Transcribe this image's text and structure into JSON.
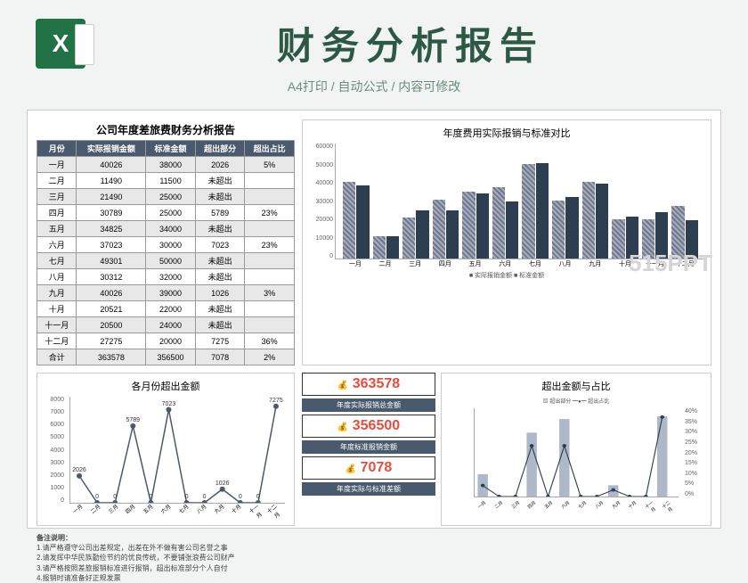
{
  "header": {
    "title": "财务分析报告",
    "subtitle": "A4打印 / 自动公式 / 内容可修改",
    "icon": "X"
  },
  "watermark": "515PPT",
  "table": {
    "title": "公司年度差旅费财务分析报告",
    "columns": [
      "月份",
      "实际报销金额",
      "标准金额",
      "超出部分",
      "超出占比"
    ],
    "rows": [
      [
        "一月",
        "40026",
        "38000",
        "2026",
        "5%"
      ],
      [
        "二月",
        "11490",
        "11500",
        "未超出",
        ""
      ],
      [
        "三月",
        "21490",
        "25000",
        "未超出",
        ""
      ],
      [
        "四月",
        "30789",
        "25000",
        "5789",
        "23%"
      ],
      [
        "五月",
        "34825",
        "34000",
        "未超出",
        ""
      ],
      [
        "六月",
        "37023",
        "30000",
        "7023",
        "23%"
      ],
      [
        "七月",
        "49301",
        "50000",
        "未超出",
        ""
      ],
      [
        "八月",
        "30312",
        "32000",
        "未超出",
        ""
      ],
      [
        "九月",
        "40026",
        "39000",
        "1026",
        "3%"
      ],
      [
        "十月",
        "20521",
        "22000",
        "未超出",
        ""
      ],
      [
        "十一月",
        "20500",
        "24000",
        "未超出",
        ""
      ],
      [
        "十二月",
        "27275",
        "20000",
        "7275",
        "36%"
      ],
      [
        "合计",
        "363578",
        "356500",
        "7078",
        "2%"
      ]
    ]
  },
  "bar_chart": {
    "title": "年度费用实际报销与标准对比",
    "months": [
      "一月",
      "二月",
      "三月",
      "四月",
      "五月",
      "六月",
      "七月",
      "八月",
      "九月",
      "十月",
      "十一月",
      "十二月"
    ],
    "actual": [
      40026,
      11490,
      21490,
      30789,
      34825,
      37023,
      49301,
      30312,
      40026,
      20521,
      20500,
      27275
    ],
    "standard": [
      38000,
      11500,
      25000,
      25000,
      34000,
      30000,
      50000,
      32000,
      39000,
      22000,
      24000,
      20000
    ],
    "ymax": 60000,
    "yticks": [
      "60000",
      "50000",
      "40000",
      "30000",
      "20000",
      "10000",
      "0"
    ],
    "legend": "■ 实际报销金额  ■ 标准金额"
  },
  "line_chart": {
    "title": "各月份超出金额",
    "months": [
      "一月",
      "二月",
      "三月",
      "四月",
      "五月",
      "六月",
      "七月",
      "八月",
      "九月",
      "十月",
      "十一月",
      "十二月"
    ],
    "values": [
      2026,
      0,
      0,
      5789,
      0,
      7023,
      0,
      0,
      1026,
      0,
      0,
      7275
    ],
    "ymax": 8000,
    "yticks": [
      "8000",
      "7000",
      "6000",
      "5000",
      "4000",
      "3000",
      "2000",
      "1000",
      "0"
    ],
    "color": "#4a5a6e"
  },
  "summary": {
    "v1": "363578",
    "l1": "年度实际报销总金额",
    "v2": "356500",
    "l2": "年度标准报销金额",
    "v3": "7078",
    "l3": "年度实际与标准差额"
  },
  "combo_chart": {
    "title": "超出金额与占比",
    "months": [
      "一月",
      "二月",
      "三月",
      "四月",
      "五月",
      "六月",
      "七月",
      "八月",
      "九月",
      "十月",
      "十一月",
      "十二月"
    ],
    "bars": [
      2026,
      0,
      0,
      5789,
      0,
      7023,
      0,
      0,
      1026,
      0,
      0,
      7275
    ],
    "line": [
      5,
      0,
      0,
      23,
      0,
      23,
      0,
      0,
      3,
      0,
      0,
      36
    ],
    "ymax": 8000,
    "rmax": 40,
    "rticks": [
      "40%",
      "35%",
      "30%",
      "25%",
      "20%",
      "15%",
      "10%",
      "5%",
      "0%"
    ],
    "legend": "▨ 超出部分  ━●━ 超出占比"
  },
  "notes": {
    "title": "备注说明：",
    "lines": [
      "1.请严格遵守公司出差规定，出差在外不做有害公司名誉之事",
      "2.请发挥中华民族勤俭节约的优良传统，不要铺张浪费公司财产",
      "3.请严格按照差旅报销标准进行报销，超出标准部分个人自付",
      "4.报销时请准备好正规发票"
    ]
  }
}
